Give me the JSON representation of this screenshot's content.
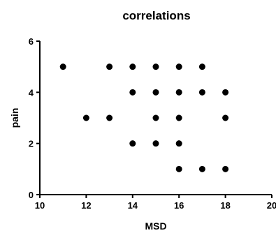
{
  "chart_data": {
    "type": "scatter",
    "title": "correlations",
    "xlabel": "MSD",
    "ylabel": "pain",
    "xlim": [
      10,
      20
    ],
    "ylim": [
      0,
      6
    ],
    "xticks": [
      10,
      12,
      14,
      16,
      18,
      20
    ],
    "yticks": [
      0,
      2,
      4,
      6
    ],
    "xtick_labels": [
      "10",
      "12",
      "14",
      "16",
      "18",
      "20"
    ],
    "ytick_labels": [
      "0",
      "2",
      "4",
      "6"
    ],
    "grid": false,
    "points": [
      {
        "x": 11,
        "y": 5
      },
      {
        "x": 13,
        "y": 5
      },
      {
        "x": 14,
        "y": 5
      },
      {
        "x": 15,
        "y": 5
      },
      {
        "x": 16,
        "y": 5
      },
      {
        "x": 17,
        "y": 5
      },
      {
        "x": 14,
        "y": 4
      },
      {
        "x": 15,
        "y": 4
      },
      {
        "x": 16,
        "y": 4
      },
      {
        "x": 17,
        "y": 4
      },
      {
        "x": 18,
        "y": 4
      },
      {
        "x": 12,
        "y": 3
      },
      {
        "x": 13,
        "y": 3
      },
      {
        "x": 15,
        "y": 3
      },
      {
        "x": 16,
        "y": 3
      },
      {
        "x": 18,
        "y": 3
      },
      {
        "x": 14,
        "y": 2
      },
      {
        "x": 15,
        "y": 2
      },
      {
        "x": 16,
        "y": 2
      },
      {
        "x": 16,
        "y": 1
      },
      {
        "x": 17,
        "y": 1
      },
      {
        "x": 18,
        "y": 1
      }
    ]
  }
}
